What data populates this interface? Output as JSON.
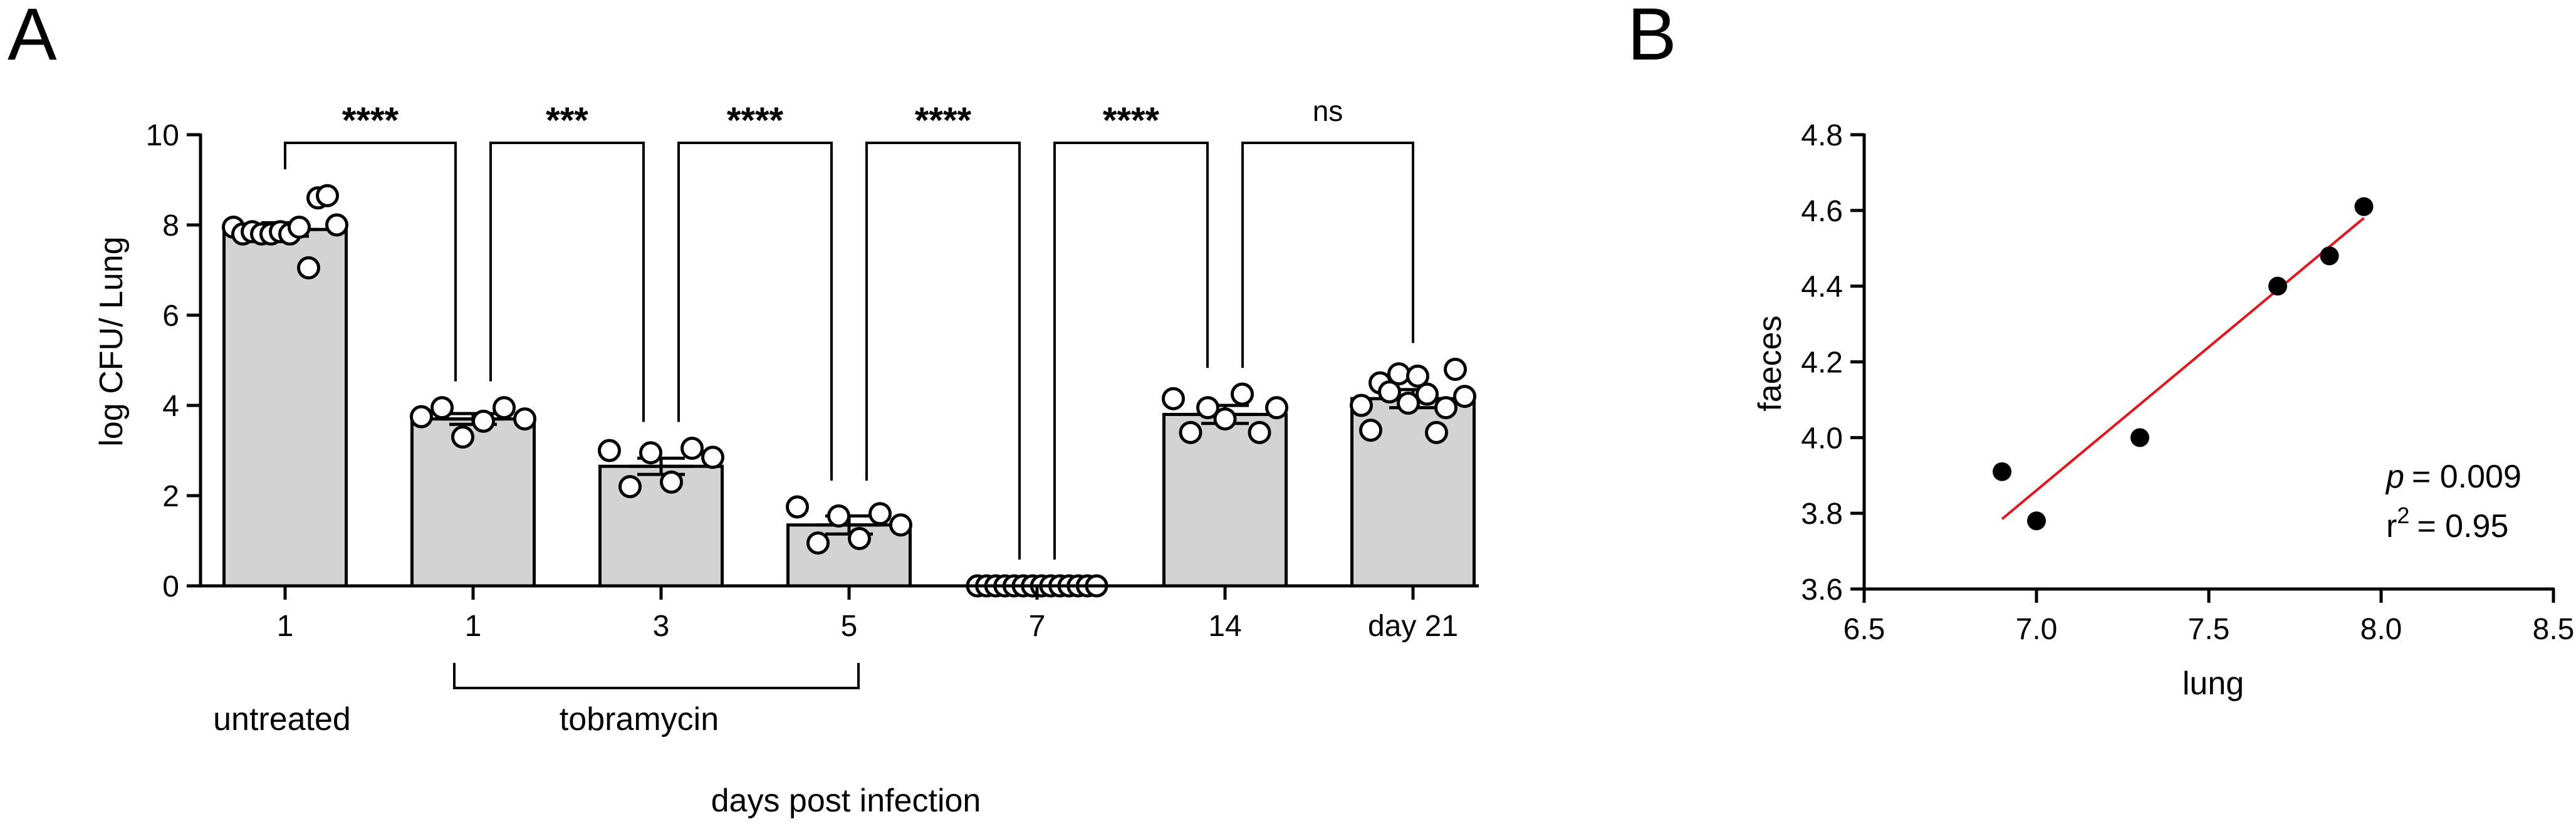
{
  "panels": {
    "a": "A",
    "b": "B"
  },
  "chart_data": [
    {
      "type": "bar",
      "title": "",
      "ylabel": "log CFU/ Lung",
      "xlabel": "days post infection",
      "ylim": [
        0,
        10
      ],
      "yticks": [
        "0",
        "2",
        "4",
        "6",
        "8",
        "10"
      ],
      "categories": [
        "1",
        "1",
        "3",
        "5",
        "7",
        "14",
        "day 21"
      ],
      "values": [
        7.9,
        3.7,
        2.65,
        1.35,
        0,
        3.8,
        4.15
      ],
      "sem": [
        0.15,
        0.12,
        0.18,
        0.2,
        0,
        0.2,
        0.2
      ],
      "points": [
        [
          7.95,
          7.8,
          7.85,
          7.8,
          7.8,
          7.85,
          7.8,
          7.95,
          7.05,
          8.6,
          8.65,
          8.0
        ],
        [
          3.75,
          3.95,
          3.3,
          3.65,
          3.95,
          3.7
        ],
        [
          3.0,
          2.2,
          2.95,
          2.3,
          3.05,
          2.85
        ],
        [
          1.75,
          0.95,
          1.55,
          1.05,
          1.6,
          1.35
        ],
        [
          0,
          0,
          0,
          0,
          0,
          0,
          0,
          0,
          0,
          0,
          0,
          0,
          0,
          0
        ],
        [
          4.15,
          3.4,
          3.95,
          3.7,
          4.25,
          3.4,
          3.95
        ],
        [
          4.0,
          3.45,
          4.5,
          4.3,
          4.7,
          4.05,
          4.65,
          4.25,
          3.4,
          3.95,
          4.8,
          4.2
        ]
      ],
      "group_labels": {
        "untreated": "untreated",
        "tobramycin": "tobramycin"
      },
      "comparisons": [
        {
          "from": 0,
          "to": 1,
          "label": "****"
        },
        {
          "from": 1,
          "to": 2,
          "label": "***"
        },
        {
          "from": 2,
          "to": 3,
          "label": "****"
        },
        {
          "from": 3,
          "to": 4,
          "label": "****"
        },
        {
          "from": 4,
          "to": 5,
          "label": "****"
        },
        {
          "from": 5,
          "to": 6,
          "label": "ns"
        }
      ]
    },
    {
      "type": "scatter",
      "title": "",
      "xlabel": "lung",
      "ylabel": "faeces",
      "xlim": [
        6.5,
        8.5
      ],
      "ylim": [
        3.6,
        4.8
      ],
      "xticks": [
        "6.5",
        "7.0",
        "7.5",
        "8.0",
        "8.5"
      ],
      "yticks": [
        "3.6",
        "3.8",
        "4.0",
        "4.2",
        "4.4",
        "4.6",
        "4.8"
      ],
      "x": [
        6.9,
        7.0,
        7.3,
        7.7,
        7.85,
        7.95
      ],
      "y": [
        3.91,
        3.78,
        4.0,
        4.4,
        4.48,
        4.61
      ],
      "fit": {
        "x": [
          6.9,
          7.95
        ],
        "y": [
          3.785,
          4.58
        ],
        "color": "#e8141b"
      },
      "stats": {
        "p_label": "p",
        "p_value": "= 0.009",
        "r_label": "r",
        "r_sup": "2",
        "r_value": "= 0.95"
      }
    }
  ]
}
